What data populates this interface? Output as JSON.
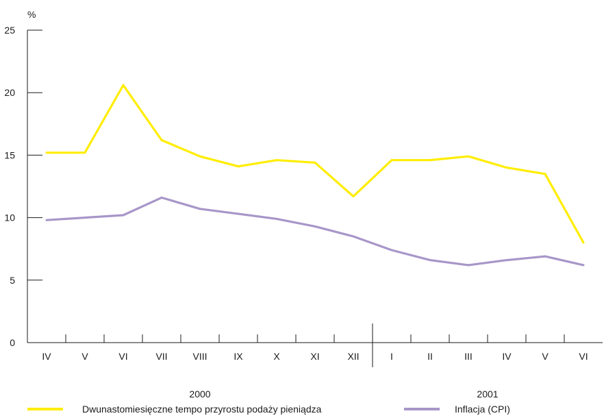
{
  "chart_data": {
    "type": "line",
    "ylabel": "%",
    "ylim": [
      0,
      25
    ],
    "yticks": [
      0,
      5,
      10,
      15,
      20,
      25
    ],
    "categories": [
      "IV",
      "V",
      "VI",
      "VII",
      "VIII",
      "IX",
      "X",
      "XI",
      "XII",
      "I",
      "II",
      "III",
      "IV",
      "V",
      "VI"
    ],
    "year_labels": [
      "2000",
      "2001"
    ],
    "grid": false,
    "legend_position": "bottom",
    "series": [
      {
        "name": "Dwunastomiesięczne tempo przyrostu podaży pieniądza",
        "color": "#ffed00",
        "values": [
          15.2,
          15.2,
          20.6,
          16.2,
          14.9,
          14.1,
          14.6,
          14.4,
          11.7,
          14.6,
          14.6,
          14.9,
          14.0,
          13.5,
          8.0
        ]
      },
      {
        "name": "Inflacja (CPI)",
        "color": "#a796c9",
        "values": [
          9.8,
          10.0,
          10.2,
          11.6,
          10.7,
          10.3,
          9.9,
          9.3,
          8.5,
          7.4,
          6.6,
          6.2,
          6.6,
          6.9,
          6.2
        ]
      }
    ]
  }
}
